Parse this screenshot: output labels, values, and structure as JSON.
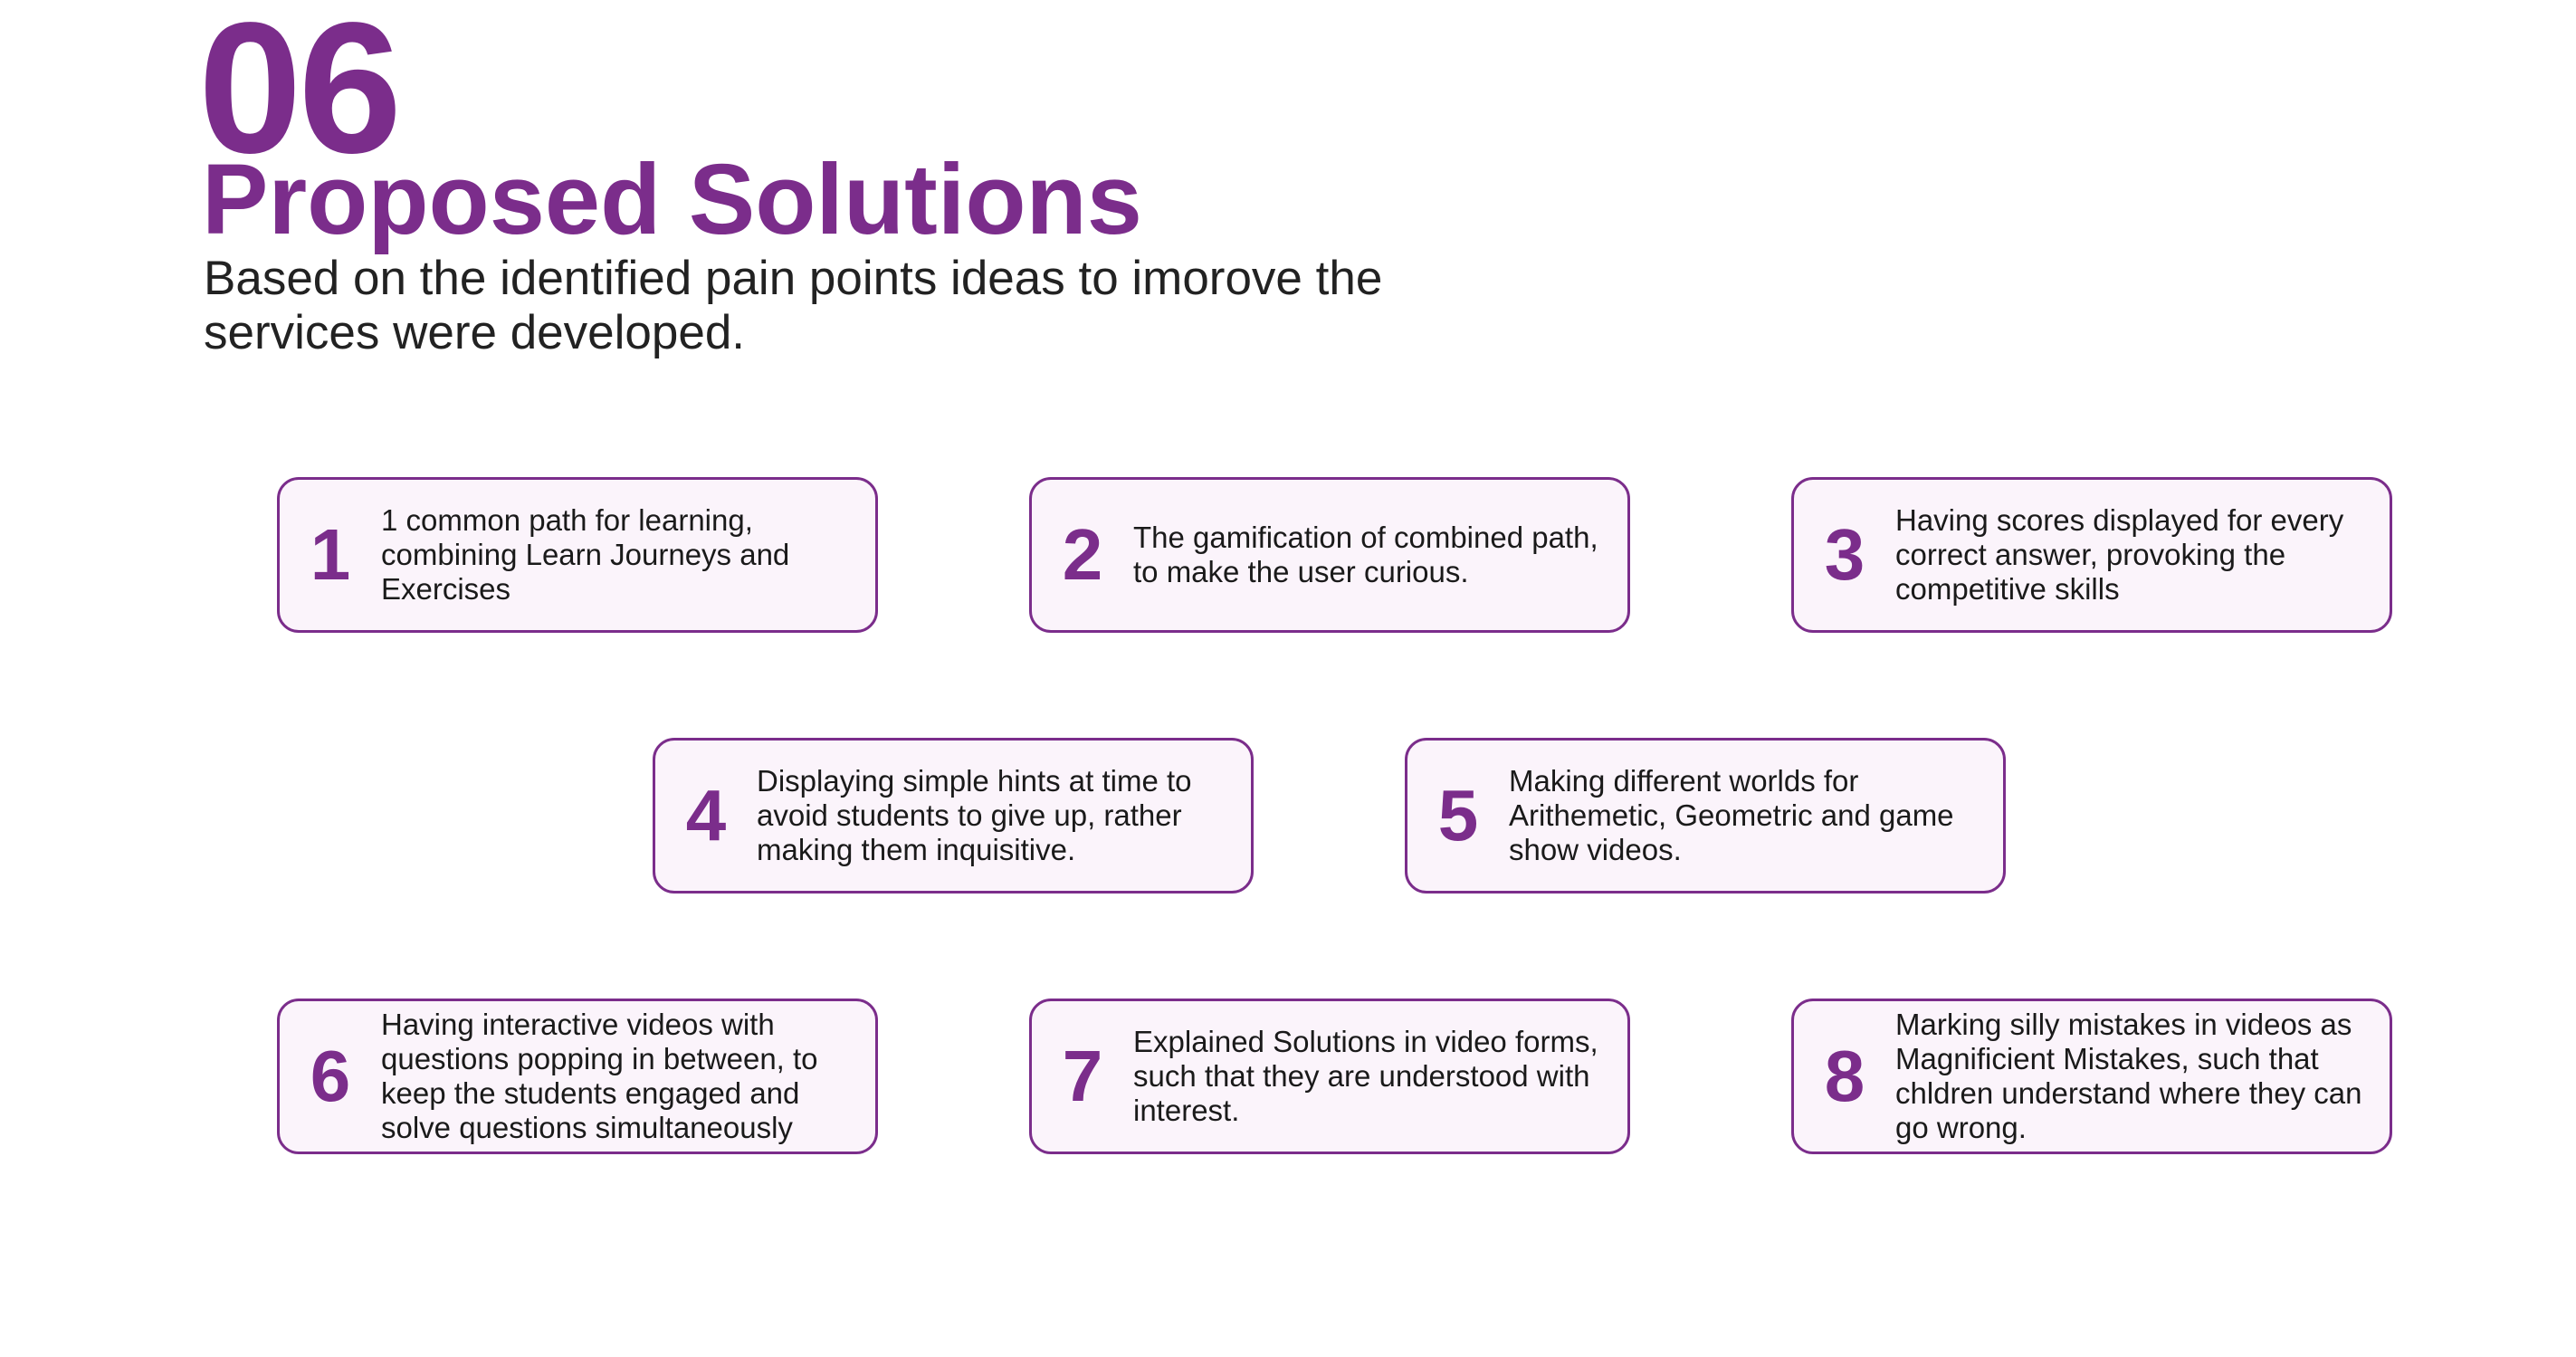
{
  "header": {
    "number": "06",
    "title": "Proposed Solutions",
    "subtitle": "Based on the identified pain points ideas to imorove the services were developed."
  },
  "solutions": [
    {
      "number": "1",
      "text": "1 common path for learning, combining Learn Journeys and Exercises"
    },
    {
      "number": "2",
      "text": "The gamification of combined path, to make the user curious."
    },
    {
      "number": "3",
      "text": "Having scores displayed for every correct answer, provoking the competitive skills"
    },
    {
      "number": "4",
      "text": "Displaying simple hints at time to avoid students to give up, rather making them inquisitive."
    },
    {
      "number": "5",
      "text": "Making different worlds for Arithemetic, Geometric and game show videos."
    },
    {
      "number": "6",
      "text": "Having interactive videos with questions popping in between, to keep the students engaged and solve questions simultaneously"
    },
    {
      "number": "7",
      "text": "Explained Solutions in video forms, such that they are understood with interest."
    },
    {
      "number": "8",
      "text": "Marking silly mistakes in videos as Magnificient Mistakes, such that chldren understand where they can go wrong."
    }
  ],
  "colors": {
    "accent": "#7b2d8b",
    "card_background": "#fbf4fb",
    "text": "#222222"
  }
}
